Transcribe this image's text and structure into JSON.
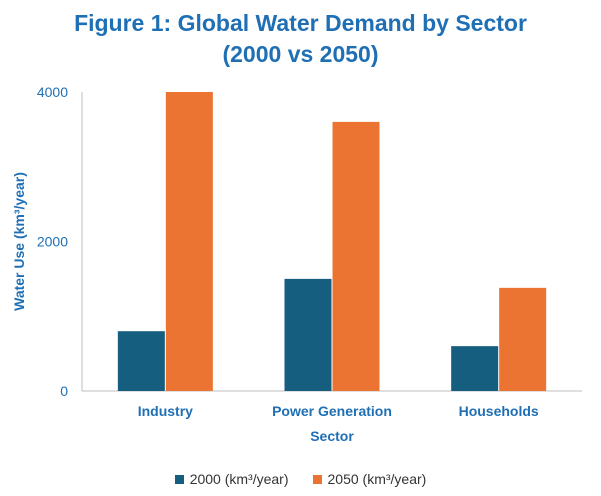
{
  "colors": {
    "title": "#1f6fb5",
    "axis_text": "#1f6fb5",
    "series_2000": "#155e7f",
    "series_2050": "#ec7432",
    "axis_line": "#bfbfbf"
  },
  "chart_data": {
    "type": "bar",
    "title_line1": "Figure 1: Global Water Demand by Sector",
    "title_line2": "(2000 vs 2050)",
    "categories": [
      "Industry",
      "Power Generation",
      "Households"
    ],
    "series": [
      {
        "name": "2000 (km³/year)",
        "values": [
          800,
          1500,
          600
        ]
      },
      {
        "name": "2050 (km³/year)",
        "values": [
          4000,
          3600,
          1380
        ]
      }
    ],
    "xlabel": "Sector",
    "ylabel": "Water Use (km³/year)",
    "ylim": [
      0,
      4000
    ],
    "yticks": [
      "0",
      "2000",
      "4000"
    ],
    "ytick_values": [
      0,
      2000,
      4000
    ],
    "grid": false,
    "legend_position": "bottom"
  }
}
